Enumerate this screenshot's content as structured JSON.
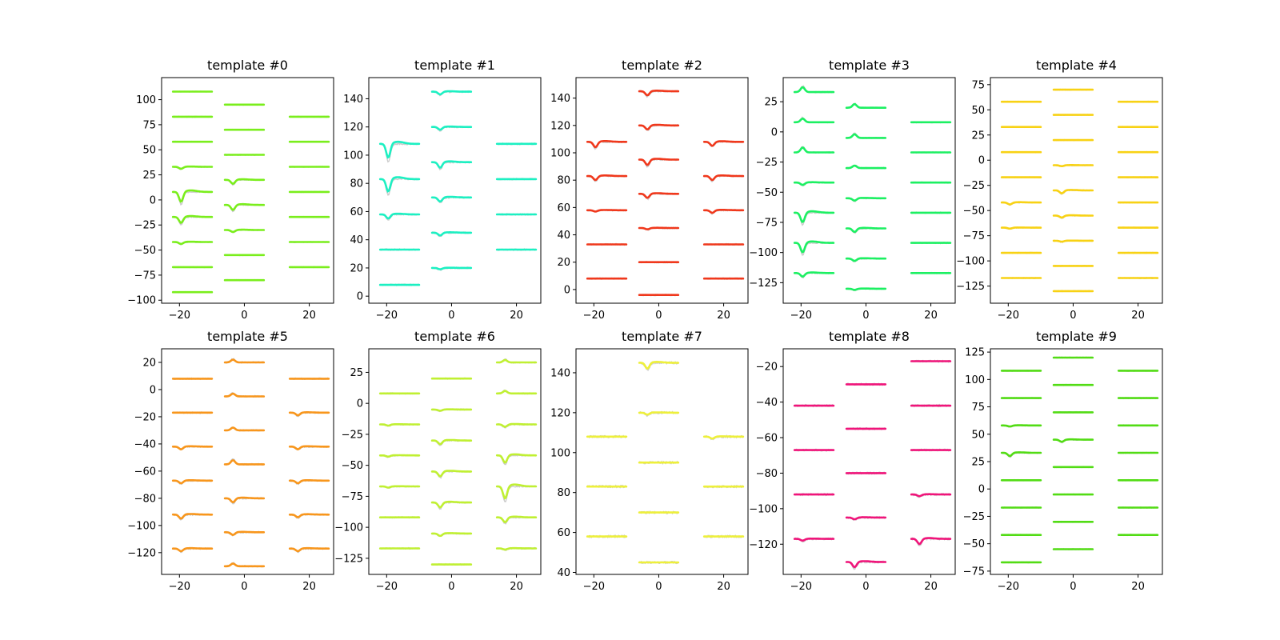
{
  "chart_data": {
    "type": "line",
    "description": "Grid of 10 waveform-template subplots; each shows traces laid out in 3 columns (x offsets -20, 0, 20) at stacked baseline levels; thin grey traces behind colored mean traces.",
    "x_ticks": [
      "−20",
      "0",
      "20"
    ],
    "x_tick_values": [
      -20,
      0,
      20
    ],
    "xlim": [
      -25.5,
      27.5
    ],
    "grey_color": "#cccccc",
    "panels": [
      {
        "title": "template #0",
        "color": "#7aee1c",
        "ylim": [
          -103,
          122
        ],
        "y_ticks": [
          -100,
          -75,
          -50,
          -25,
          0,
          25,
          50,
          75,
          100
        ],
        "y_tick_labels": [
          "−100",
          "−75",
          "−50",
          "−25",
          "0",
          "25",
          "50",
          "75",
          "100"
        ],
        "columns": [
          {
            "x_center": -16,
            "levels": [
              108,
              83,
              58,
              33,
              8,
              -17,
              -42,
              -67,
              -92
            ],
            "dips": [
              0,
              0,
              0,
              2,
              10,
              6,
              2,
              0,
              0
            ]
          },
          {
            "x_center": 0,
            "levels": [
              95,
              70,
              45,
              20,
              -5,
              -30,
              -55,
              -80
            ],
            "dips": [
              0,
              0,
              0,
              4,
              5,
              2,
              0,
              0
            ]
          },
          {
            "x_center": 20,
            "levels": [
              83,
              58,
              33,
              8,
              -17,
              -42,
              -67
            ],
            "dips": [
              0,
              0,
              0,
              0,
              0,
              0,
              0
            ]
          }
        ]
      },
      {
        "title": "template #1",
        "color": "#1cf0c2",
        "ylim": [
          -5,
          155
        ],
        "y_ticks": [
          0,
          20,
          40,
          60,
          80,
          100,
          120,
          140
        ],
        "y_tick_labels": [
          "0",
          "20",
          "40",
          "60",
          "80",
          "100",
          "120",
          "140"
        ],
        "columns": [
          {
            "x_center": -16,
            "levels": [
              108,
              83,
              58,
              33,
              8
            ],
            "dips": [
              10,
              9,
              3,
              0,
              0
            ]
          },
          {
            "x_center": 0,
            "levels": [
              145,
              120,
              95,
              70,
              45,
              20
            ],
            "dips": [
              2,
              2,
              4,
              3,
              2,
              1
            ]
          },
          {
            "x_center": 20,
            "levels": [
              108,
              83,
              58,
              33
            ],
            "dips": [
              0,
              0,
              0,
              0
            ]
          }
        ]
      },
      {
        "title": "template #2",
        "color": "#f0381c",
        "ylim": [
          -10,
          155
        ],
        "y_ticks": [
          0,
          20,
          40,
          60,
          80,
          100,
          120,
          140
        ],
        "y_tick_labels": [
          "0",
          "20",
          "40",
          "60",
          "80",
          "100",
          "120",
          "140"
        ],
        "columns": [
          {
            "x_center": -16,
            "levels": [
              108,
              83,
              58,
              33,
              8
            ],
            "dips": [
              4,
              3,
              1,
              0,
              0
            ]
          },
          {
            "x_center": 0,
            "levels": [
              145,
              120,
              95,
              70,
              45,
              20,
              -4
            ],
            "dips": [
              3,
              3,
              4,
              3,
              1,
              0,
              0
            ]
          },
          {
            "x_center": 20,
            "levels": [
              108,
              83,
              58,
              33,
              8
            ],
            "dips": [
              3,
              3,
              2,
              0,
              0
            ]
          }
        ]
      },
      {
        "title": "template #3",
        "color": "#1cf062",
        "ylim": [
          -142,
          45
        ],
        "y_ticks": [
          -125,
          -100,
          -75,
          -50,
          -25,
          0,
          25
        ],
        "y_tick_labels": [
          "−125",
          "−100",
          "−75",
          "−50",
          "−25",
          "0",
          "25"
        ],
        "columns": [
          {
            "x_center": -16,
            "levels": [
              33,
              8,
              -17,
              -42,
              -67,
              -92,
              -117
            ],
            "dips": [
              -4,
              -3,
              -4,
              2,
              8,
              8,
              3
            ]
          },
          {
            "x_center": 0,
            "levels": [
              20,
              -5,
              -30,
              -55,
              -80,
              -105,
              -130
            ],
            "dips": [
              -3,
              -3,
              -2,
              2,
              3,
              2,
              1
            ]
          },
          {
            "x_center": 20,
            "levels": [
              8,
              -17,
              -42,
              -67,
              -92,
              -117
            ],
            "dips": [
              0,
              0,
              0,
              0,
              0,
              0
            ]
          }
        ]
      },
      {
        "title": "template #4",
        "color": "#f8d214",
        "ylim": [
          -142,
          82
        ],
        "y_ticks": [
          -125,
          -100,
          -75,
          -50,
          -25,
          0,
          25,
          50,
          75
        ],
        "y_tick_labels": [
          "−125",
          "−100",
          "−75",
          "−50",
          "−25",
          "0",
          "25",
          "50",
          "75"
        ],
        "columns": [
          {
            "x_center": -16,
            "levels": [
              58,
              33,
              8,
              -17,
              -42,
              -67,
              -92,
              -117
            ],
            "dips": [
              0,
              0,
              0,
              0,
              2,
              1,
              0,
              0
            ]
          },
          {
            "x_center": 0,
            "levels": [
              70,
              45,
              20,
              -5,
              -30,
              -55,
              -80,
              -105,
              -130
            ],
            "dips": [
              0,
              0,
              0,
              1,
              3,
              2,
              1,
              0,
              0
            ]
          },
          {
            "x_center": 20,
            "levels": [
              58,
              33,
              8,
              -17,
              -42,
              -67,
              -92,
              -117
            ],
            "dips": [
              0,
              0,
              0,
              0,
              0,
              0,
              0,
              0
            ]
          }
        ]
      },
      {
        "title": "template #5",
        "color": "#f8961c",
        "ylim": [
          -136,
          30
        ],
        "y_ticks": [
          -120,
          -100,
          -80,
          -60,
          -40,
          -20,
          0,
          20
        ],
        "y_tick_labels": [
          "−120",
          "−100",
          "−80",
          "−60",
          "−40",
          "−20",
          "0",
          "20"
        ],
        "columns": [
          {
            "x_center": -16,
            "levels": [
              8,
              -17,
              -42,
              -67,
              -92,
              -117
            ],
            "dips": [
              0,
              0,
              2,
              2,
              3,
              2
            ]
          },
          {
            "x_center": 0,
            "levels": [
              20,
              -5,
              -30,
              -55,
              -80,
              -105,
              -130
            ],
            "dips": [
              -2,
              -2,
              -2,
              -3,
              3,
              2,
              -2
            ]
          },
          {
            "x_center": 20,
            "levels": [
              8,
              -17,
              -42,
              -67,
              -92,
              -117
            ],
            "dips": [
              0,
              2,
              2,
              2,
              2,
              2
            ]
          }
        ]
      },
      {
        "title": "template #6",
        "color": "#c0f032",
        "ylim": [
          -138,
          44
        ],
        "y_ticks": [
          -125,
          -100,
          -75,
          -50,
          -25,
          0,
          25
        ],
        "y_tick_labels": [
          "−125",
          "−100",
          "−75",
          "−50",
          "−25",
          "0",
          "25"
        ],
        "columns": [
          {
            "x_center": -16,
            "levels": [
              8,
              -17,
              -42,
              -67,
              -92,
              -117
            ],
            "dips": [
              0,
              1,
              1,
              1,
              0,
              0
            ]
          },
          {
            "x_center": 0,
            "levels": [
              20,
              -5,
              -30,
              -55,
              -80,
              -105,
              -130
            ],
            "dips": [
              0,
              1,
              3,
              4,
              4,
              2,
              0
            ]
          },
          {
            "x_center": 20,
            "levels": [
              33,
              8,
              -17,
              -42,
              -67,
              -92,
              -117
            ],
            "dips": [
              -2,
              -2,
              2,
              6,
              10,
              4,
              1
            ]
          }
        ]
      },
      {
        "title": "template #7",
        "color": "#eef03a",
        "ylim": [
          39,
          152
        ],
        "y_ticks": [
          40,
          60,
          80,
          100,
          120,
          140
        ],
        "y_tick_labels": [
          "40",
          "60",
          "80",
          "100",
          "120",
          "140"
        ],
        "columns": [
          {
            "x_center": -16,
            "levels": [
              108,
              83,
              58
            ],
            "dips": [
              0,
              0,
              0
            ]
          },
          {
            "x_center": 0,
            "levels": [
              145,
              120,
              95,
              70,
              45
            ],
            "dips": [
              3,
              1,
              0,
              0,
              0
            ]
          },
          {
            "x_center": 20,
            "levels": [
              108,
              83,
              58
            ],
            "dips": [
              1,
              0,
              0
            ]
          }
        ]
      },
      {
        "title": "template #8",
        "color": "#f0147a",
        "ylim": [
          -137,
          -10
        ],
        "y_ticks": [
          -120,
          -100,
          -80,
          -60,
          -40,
          -20
        ],
        "y_tick_labels": [
          "−120",
          "−100",
          "−80",
          "−60",
          "−40",
          "−20"
        ],
        "columns": [
          {
            "x_center": -16,
            "levels": [
              -42,
              -67,
              -92,
              -117
            ],
            "dips": [
              0,
              0,
              0,
              1
            ]
          },
          {
            "x_center": 0,
            "levels": [
              -30,
              -55,
              -80,
              -105,
              -130
            ],
            "dips": [
              0,
              0,
              0,
              1,
              3
            ]
          },
          {
            "x_center": 20,
            "levels": [
              -17,
              -42,
              -67,
              -92,
              -117
            ],
            "dips": [
              0,
              0,
              0,
              1,
              3
            ]
          }
        ]
      },
      {
        "title": "template #9",
        "color": "#52dc14",
        "ylim": [
          -78,
          128
        ],
        "y_ticks": [
          -75,
          -50,
          -25,
          0,
          25,
          50,
          75,
          100,
          125
        ],
        "y_tick_labels": [
          "−75",
          "−50",
          "−25",
          "0",
          "25",
          "50",
          "75",
          "100",
          "125"
        ],
        "columns": [
          {
            "x_center": -16,
            "levels": [
              108,
              83,
              58,
              33,
              8,
              -17,
              -42,
              -67
            ],
            "dips": [
              0,
              0,
              1,
              3,
              0,
              0,
              0,
              0
            ]
          },
          {
            "x_center": 0,
            "levels": [
              120,
              95,
              70,
              45,
              20,
              -5,
              -30,
              -55
            ],
            "dips": [
              0,
              0,
              0,
              2,
              0,
              0,
              0,
              0
            ]
          },
          {
            "x_center": 20,
            "levels": [
              108,
              83,
              58,
              33,
              8,
              -17,
              -42
            ],
            "dips": [
              0,
              0,
              0,
              0,
              0,
              0,
              0
            ]
          }
        ]
      }
    ]
  }
}
